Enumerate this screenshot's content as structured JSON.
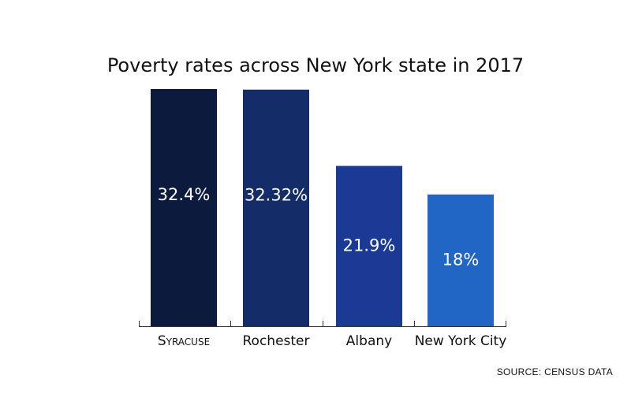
{
  "chart_data": {
    "type": "bar",
    "title": "Poverty rates across New York state in 2017",
    "categories": [
      "Syracuse",
      "Rochester",
      "Albany",
      "New York City"
    ],
    "values": [
      32.4,
      32.32,
      21.9,
      18
    ],
    "value_labels": [
      "32.4%",
      "32.32%",
      "21.9%",
      "18%"
    ],
    "ylim": [
      0,
      32.4
    ],
    "xlabel": "",
    "ylabel": "",
    "grid": false,
    "colors": [
      "#0c1a3d",
      "#142d69",
      "#1a3a96",
      "#2166c4"
    ],
    "source": "SOURCE: CENSUS DATA"
  }
}
